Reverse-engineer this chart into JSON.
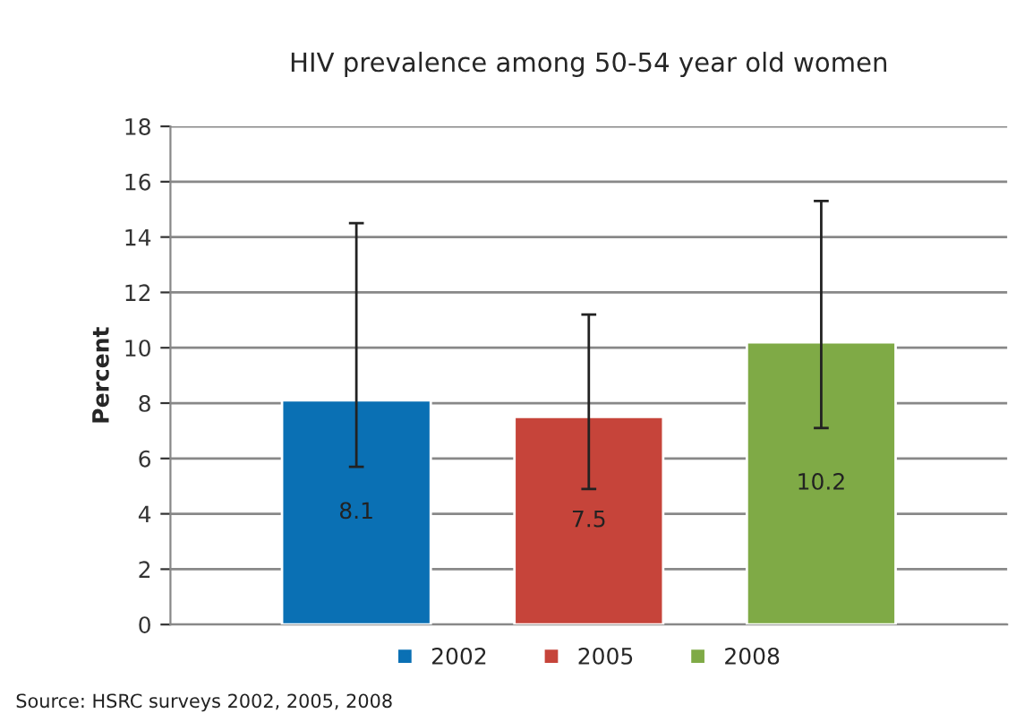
{
  "chart_data": {
    "type": "bar",
    "title": "HIV prevalence among 50-54 year old women",
    "ylabel": "Percent",
    "categories": [
      null
    ],
    "series": [
      {
        "name": "2002",
        "color": "#0a70b4",
        "values": [
          8.1
        ],
        "errors": [
          [
            5.7,
            14.5
          ]
        ]
      },
      {
        "name": "2005",
        "color": "#c6443a",
        "values": [
          7.5
        ],
        "errors": [
          [
            4.9,
            11.2
          ]
        ]
      },
      {
        "name": "2008",
        "color": "#7faa46",
        "values": [
          10.2
        ],
        "errors": [
          [
            7.1,
            15.3
          ]
        ]
      }
    ],
    "ylim": [
      0,
      18
    ],
    "yticks": [
      0,
      2,
      4,
      6,
      8,
      10,
      12,
      14,
      16,
      18
    ],
    "grid": "y",
    "legend": "bottom",
    "data_labels": true,
    "annotations": [
      "Source: HSRC surveys 2002, 2005, 2008"
    ]
  }
}
